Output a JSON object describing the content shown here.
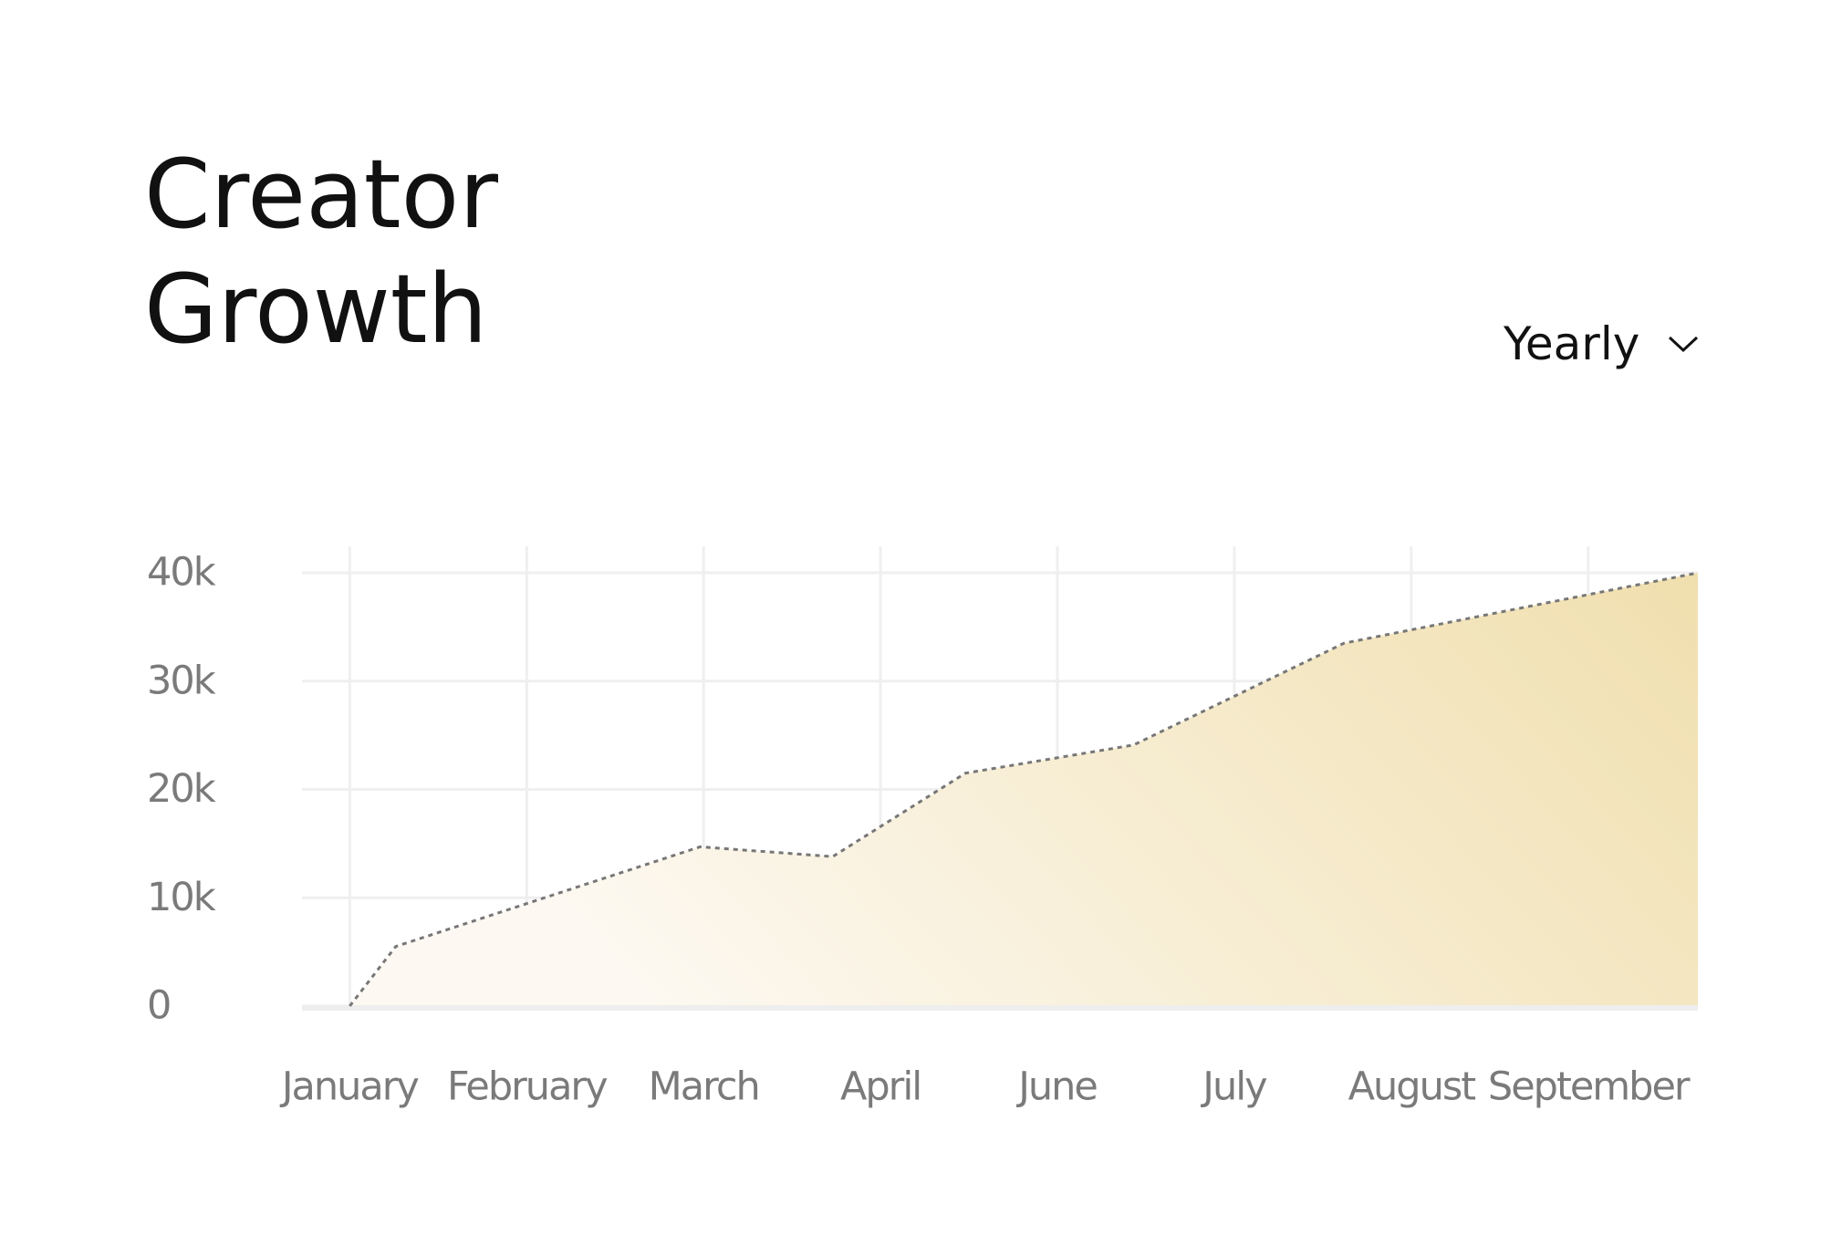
{
  "chart_data": {
    "type": "area",
    "title": "Creator Growth",
    "control": "Yearly",
    "x": [
      0,
      0.26,
      1.98,
      2.73,
      3.48,
      4.43,
      5.62,
      7.62
    ],
    "series": [
      {
        "color": "#777777",
        "fill_from": "#fdf9f2",
        "fill_to": "#f0dfae",
        "values": [
          0,
          5500,
          14700,
          13800,
          21500,
          24100,
          33500,
          40000
        ]
      }
    ],
    "xlim": [
      -0.27,
      7.62
    ],
    "xticks": [
      {
        "value": 0,
        "label": "January"
      },
      {
        "value": 1,
        "label": "February"
      },
      {
        "value": 2,
        "label": "March"
      },
      {
        "value": 3,
        "label": "April"
      },
      {
        "value": 4,
        "label": "June"
      },
      {
        "value": 5,
        "label": "July"
      },
      {
        "value": 6,
        "label": "August"
      },
      {
        "value": 7,
        "label": "September"
      }
    ],
    "ylim": [
      0,
      40000
    ],
    "yticks": [
      0,
      {
        "value": 10000,
        "label": "10k"
      },
      {
        "value": 20000,
        "label": "20k"
      },
      {
        "value": 30000,
        "label": "30k"
      },
      {
        "value": 40000,
        "label": "40k"
      }
    ],
    "grid": true
  }
}
